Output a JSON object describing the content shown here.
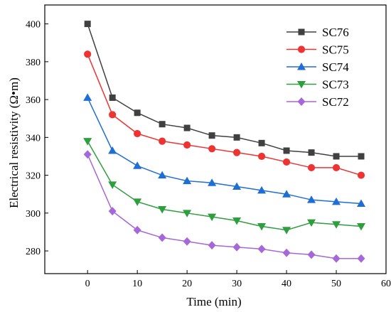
{
  "chart_data": {
    "type": "line",
    "xlabel": "Time (min)",
    "ylabel": "Electrical resistivity (Ω•m)",
    "xlim": [
      -8.6,
      60
    ],
    "ylim": [
      268,
      410
    ],
    "xticks": [
      0,
      10,
      20,
      30,
      40,
      50,
      60
    ],
    "yticks": [
      280,
      300,
      320,
      340,
      360,
      380,
      400
    ],
    "x": [
      0,
      5,
      10,
      15,
      20,
      25,
      30,
      35,
      40,
      45,
      50,
      55
    ],
    "legend_position": "top-right",
    "grid": false,
    "series": [
      {
        "name": "SC76",
        "color": "#404040",
        "marker": "square",
        "values": [
          400,
          361,
          353,
          347,
          345,
          341,
          340,
          337,
          333,
          332,
          330,
          330
        ]
      },
      {
        "name": "SC75",
        "color": "#ee3333",
        "marker": "circle",
        "values": [
          384,
          352,
          342,
          338,
          336,
          334,
          332,
          330,
          327,
          324,
          324,
          320
        ]
      },
      {
        "name": "SC74",
        "color": "#1f6ed4",
        "marker": "triangle-up",
        "values": [
          361,
          333,
          325,
          320,
          317,
          316,
          314,
          312,
          310,
          307,
          306,
          305
        ]
      },
      {
        "name": "SC73",
        "color": "#2e9e3e",
        "marker": "triangle-down",
        "values": [
          338,
          315,
          306,
          302,
          300,
          298,
          296,
          293,
          291,
          295,
          294,
          293
        ]
      },
      {
        "name": "SC72",
        "color": "#a667d9",
        "marker": "diamond",
        "values": [
          331,
          301,
          291,
          287,
          285,
          283,
          282,
          281,
          279,
          278,
          276,
          276
        ]
      }
    ]
  }
}
